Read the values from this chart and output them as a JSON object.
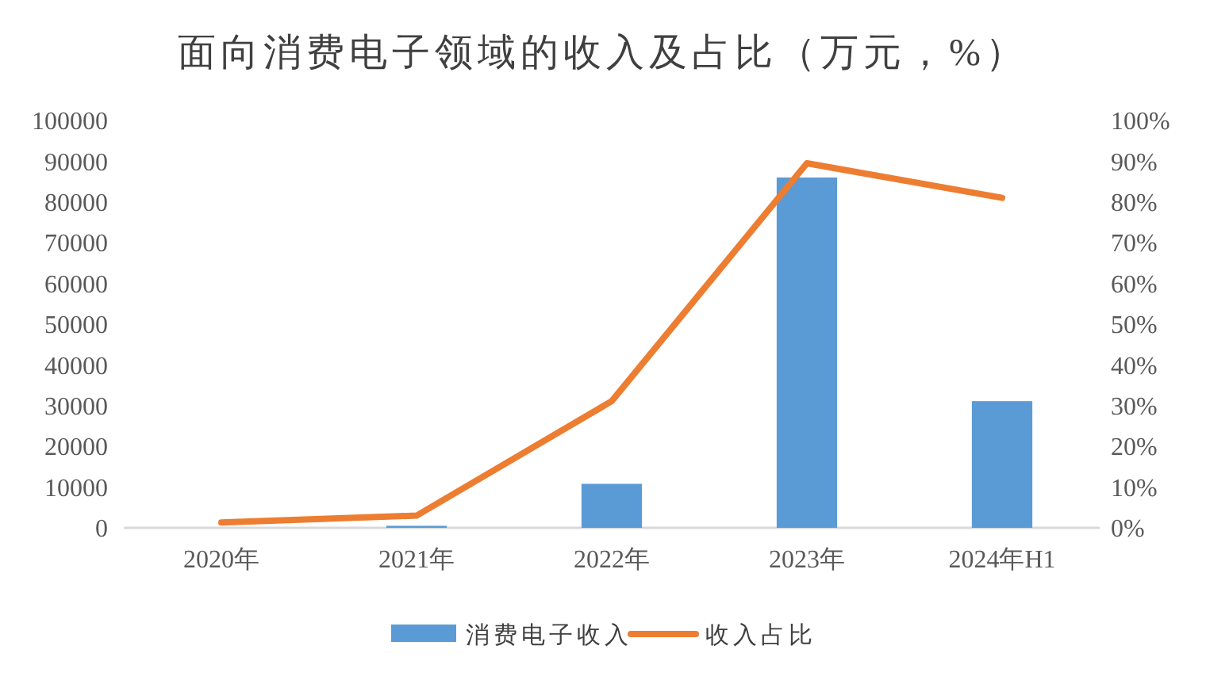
{
  "chart_data": {
    "type": "bar",
    "title": "面向消费电子领域的收入及占比（万元，%）",
    "categories": [
      "2020年",
      "2021年",
      "2022年",
      "2023年",
      "2024年H1"
    ],
    "series": [
      {
        "name": "消费电子收入",
        "color": "#5b9bd5",
        "values": [
          null,
          500,
          10800,
          86000,
          31100
        ]
      },
      {
        "name": "收入占比",
        "type": "line",
        "axis": "y2",
        "color": "#ed7d31",
        "values": [
          1.3,
          3.0,
          31.1,
          89.5,
          81.0
        ]
      }
    ],
    "ylim": [
      0,
      100000
    ],
    "yticks": [
      0,
      10000,
      20000,
      30000,
      40000,
      50000,
      60000,
      70000,
      80000,
      90000,
      100000
    ],
    "y2lim": [
      0,
      100
    ],
    "y2ticks": [
      {
        "value": 0,
        "label": "0%"
      },
      {
        "value": 10,
        "label": "10%"
      },
      {
        "value": 20,
        "label": "20%"
      },
      {
        "value": 30,
        "label": "30%"
      },
      {
        "value": 40,
        "label": "40%"
      },
      {
        "value": 50,
        "label": "50%"
      },
      {
        "value": 60,
        "label": "60%"
      },
      {
        "value": 70,
        "label": "70%"
      },
      {
        "value": 80,
        "label": "80%"
      },
      {
        "value": 90,
        "label": "90%"
      },
      {
        "value": 100,
        "label": "100%"
      }
    ],
    "legend": "bottom"
  }
}
